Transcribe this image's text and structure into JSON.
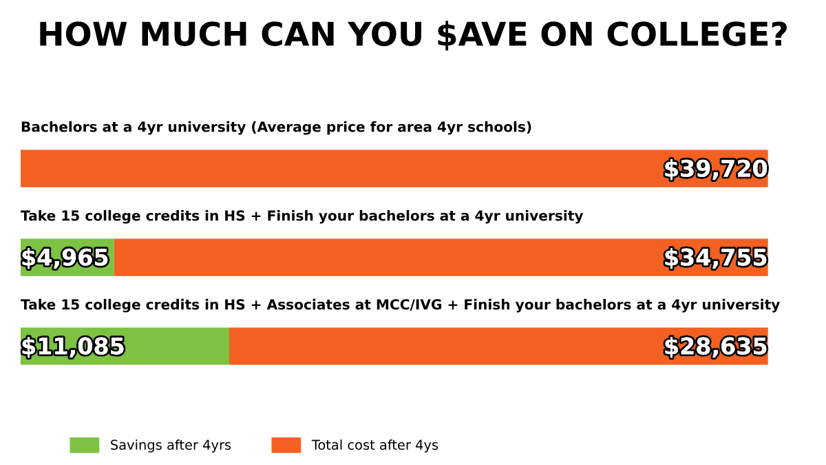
{
  "chart_data": {
    "type": "bar",
    "orientation": "horizontal",
    "stacked": true,
    "title": "HOW MUCH CAN YOU $AVE ON COLLEGE?",
    "categories": [
      "Bachelors at a 4yr university (Average price for area 4yr schools)",
      "Take 15 college credits in HS + Finish your bachelors at a 4yr university",
      "Take 15 college credits in HS + Associates at MCC/IVG + Finish your bachelors at a 4yr university"
    ],
    "series": [
      {
        "name": "Savings after 4yrs",
        "color": "#7dc242",
        "values": [
          null,
          4965,
          11085
        ],
        "value_labels": [
          null,
          "$4,965",
          "$11,085"
        ]
      },
      {
        "name": "Total cost after 4ys",
        "color": "#f26122",
        "values": [
          39720,
          34755,
          28635
        ],
        "value_labels": [
          "$39,720",
          "$34,755",
          "$28,635"
        ]
      }
    ],
    "legend": "bottom left"
  }
}
